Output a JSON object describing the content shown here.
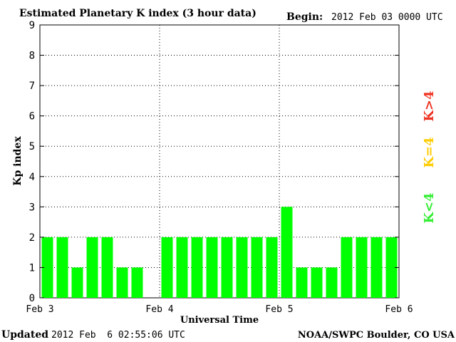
{
  "chart_data": {
    "type": "bar",
    "title": "Estimated Planetary K index (3 hour data)",
    "begin_label": "Begin:",
    "begin_value": "2012 Feb 03 0000 UTC",
    "xlabel": "Universal Time",
    "ylabel": "Kp index",
    "ylim": [
      0,
      9
    ],
    "yticks": [
      "0",
      "1",
      "2",
      "3",
      "4",
      "5",
      "6",
      "7",
      "8",
      "9"
    ],
    "xticks": [
      "Feb 3",
      "Feb 4",
      "Feb 5",
      "Feb 6"
    ],
    "grid": "dotted",
    "bar_color": "#00ff00",
    "values": [
      2,
      2,
      1,
      2,
      2,
      1,
      1,
      null,
      2,
      2,
      2,
      2,
      2,
      2,
      2,
      2,
      3,
      1,
      1,
      1,
      2,
      2,
      2,
      2
    ],
    "legend": [
      {
        "label": "K<4",
        "color": "#33ee33"
      },
      {
        "label": "K=4",
        "color": "#ffcc00"
      },
      {
        "label": "K>4",
        "color": "#ee3322"
      }
    ]
  },
  "footer": {
    "updated_label": "Updated",
    "updated_value": "2012 Feb  6 02:55:06 UTC",
    "source": "NOAA/SWPC Boulder, CO USA"
  }
}
